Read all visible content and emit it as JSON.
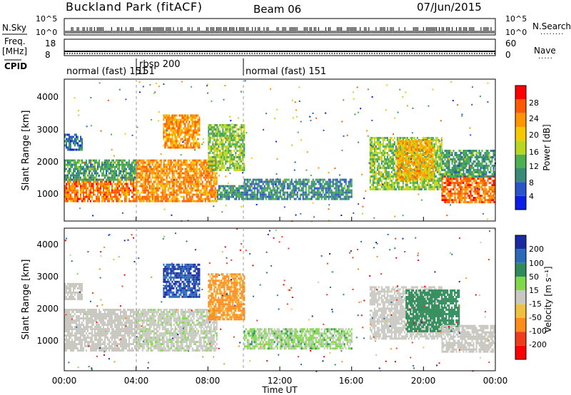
{
  "header": {
    "station": "Buckland Park (fitACF)",
    "beam": "Beam 06",
    "date": "07/Jun/2015"
  },
  "nsky_panel": {
    "left_label": "N.Sky",
    "left_ticks": [
      "10^5",
      "10^0"
    ],
    "right_ticks": [
      "10^5",
      "10^0"
    ],
    "right_label": "N.Search",
    "right_dots": "........"
  },
  "freq_panel": {
    "left_label_1": "Freq.",
    "left_label_2": "[MHz]",
    "left_ticks": [
      "18",
      "8"
    ],
    "right_ticks": [
      "60",
      "0"
    ],
    "right_label": "Nave",
    "right_dots": "....."
  },
  "cpid_panel": {
    "label": "CPID",
    "segments": [
      {
        "label": "normal (fast) 151",
        "start_h": 0,
        "end_h": 4
      },
      {
        "label": "rbsp 200",
        "start_h": 4,
        "end_h": 10
      },
      {
        "label": "normal (fast) 151",
        "start_h": 10,
        "end_h": 24
      }
    ],
    "overlap_text": "151"
  },
  "x_axis": {
    "label": "Time UT",
    "ticks": [
      "00:00",
      "04:00",
      "08:00",
      "12:00",
      "16:00",
      "20:00",
      "00:00"
    ]
  },
  "power_panel": {
    "ylabel": "Slant Range [km]",
    "yticks": [
      "1000",
      "2000",
      "3000",
      "4000"
    ],
    "colorbar_label": "Power [dB]",
    "colorbar_ticks": [
      "4",
      "8",
      "12",
      "16",
      "20",
      "24",
      "28"
    ],
    "colorbar_colors": [
      "#0a1ee6",
      "#2855c8",
      "#3a8a78",
      "#4caf50",
      "#b8d820",
      "#f5c800",
      "#ff9600",
      "#ff5a00",
      "#ff0000"
    ]
  },
  "velocity_panel": {
    "ylabel": "Slant Range [km]",
    "yticks": [
      "1000",
      "2000",
      "3000",
      "4000"
    ],
    "colorbar_label": "Velocity [m s⁻¹]",
    "colorbar_ticks": [
      "200",
      "100",
      "50",
      "15",
      "-15",
      "-50",
      "-100",
      "-200"
    ],
    "colorbar_colors": [
      "#1a2aa0",
      "#2a6ab8",
      "#2e8c5a",
      "#7ed84a",
      "#c8c8c0",
      "#f0c040",
      "#ff8c1a",
      "#f03c1a",
      "#ff0000"
    ]
  },
  "chart_data": {
    "type": "heatmap",
    "x_range_hours": [
      0,
      24
    ],
    "y_range_km": [
      180,
      4600
    ],
    "power_regions": [
      {
        "t0": 0.0,
        "t1": 4.0,
        "r0": 800,
        "r1": 1500,
        "level": 26
      },
      {
        "t0": 0.0,
        "t1": 4.0,
        "r0": 1500,
        "r1": 2100,
        "level": 10
      },
      {
        "t0": 0.0,
        "t1": 1.0,
        "r0": 2400,
        "r1": 2900,
        "level": 6
      },
      {
        "t0": 4.0,
        "t1": 8.5,
        "r0": 800,
        "r1": 2100,
        "level": 25
      },
      {
        "t0": 5.5,
        "t1": 7.5,
        "r0": 2500,
        "r1": 3500,
        "level": 24
      },
      {
        "t0": 8.0,
        "t1": 10.0,
        "r0": 1800,
        "r1": 3200,
        "level": 14
      },
      {
        "t0": 8.5,
        "t1": 10.0,
        "r0": 900,
        "r1": 1300,
        "level": 9
      },
      {
        "t0": 10.0,
        "t1": 16.0,
        "r0": 900,
        "r1": 1500,
        "level": 8
      },
      {
        "t0": 17.0,
        "t1": 21.0,
        "r0": 1200,
        "r1": 2800,
        "level": 14
      },
      {
        "t0": 18.5,
        "t1": 20.5,
        "r0": 1500,
        "r1": 2700,
        "level": 22
      },
      {
        "t0": 21.0,
        "t1": 24.0,
        "r0": 800,
        "r1": 1600,
        "level": 27
      },
      {
        "t0": 21.0,
        "t1": 24.0,
        "r0": 1600,
        "r1": 2400,
        "level": 10
      }
    ],
    "velocity_regions": [
      {
        "t0": 0.0,
        "t1": 4.0,
        "r0": 800,
        "r1": 2100,
        "velocity": 0
      },
      {
        "t0": 0.0,
        "t1": 1.0,
        "r0": 2400,
        "r1": 2900,
        "velocity": 0
      },
      {
        "t0": 4.0,
        "t1": 8.5,
        "r0": 800,
        "r1": 2100,
        "velocity": 5
      },
      {
        "t0": 5.5,
        "t1": 7.5,
        "r0": 2500,
        "r1": 3500,
        "velocity": 150
      },
      {
        "t0": 8.0,
        "t1": 10.0,
        "r0": 1800,
        "r1": 3200,
        "velocity": -40
      },
      {
        "t0": 10.0,
        "t1": 16.0,
        "r0": 900,
        "r1": 1500,
        "velocity": 20
      },
      {
        "t0": 17.0,
        "t1": 21.0,
        "r0": 1200,
        "r1": 2800,
        "velocity": 0
      },
      {
        "t0": 19.0,
        "t1": 22.0,
        "r0": 1400,
        "r1": 2700,
        "velocity": 60
      },
      {
        "t0": 21.0,
        "t1": 24.0,
        "r0": 800,
        "r1": 1600,
        "velocity": 0
      }
    ]
  }
}
